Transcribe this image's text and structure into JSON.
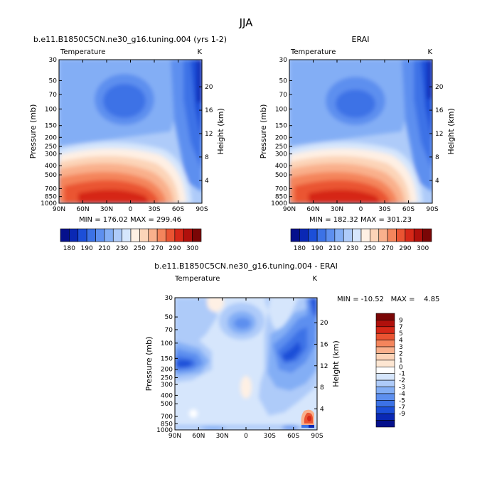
{
  "title": "JJA",
  "colors": {
    "temp_scale": [
      "#05108c",
      "#0a28b4",
      "#1c4fd8",
      "#3c72e6",
      "#5d8fef",
      "#83aef5",
      "#aecbf9",
      "#d6e6fc",
      "#fef0e4",
      "#fcd4b8",
      "#f9b08c",
      "#f4855c",
      "#ea5432",
      "#d62818",
      "#b0100c",
      "#7a0606"
    ],
    "diff_scale": [
      "#05108c",
      "#0a28b4",
      "#1c4fd8",
      "#3c72e6",
      "#5d8fef",
      "#83aef5",
      "#aecbf9",
      "#d6e6fc",
      "#ffffff",
      "#fde6d2",
      "#fcd4b8",
      "#f9b08c",
      "#f4855c",
      "#ea5432",
      "#d62818",
      "#b0100c",
      "#7a0606"
    ]
  },
  "chart_data": [
    {
      "type": "heatmap",
      "title": "b.e11.B1850C5CN.ne30_g16.tuning.004 (yrs 1-2)",
      "subtitle_left": "Temperature",
      "subtitle_right": "K",
      "ylabel": "Pressure (mb)",
      "ylabel_right": "Height (km)",
      "x_ticks": [
        "90N",
        "60N",
        "30N",
        "0",
        "30S",
        "60S",
        "90S"
      ],
      "y_ticks": [
        "30",
        "50",
        "70",
        "100",
        "150",
        "200",
        "250",
        "300",
        "400",
        "500",
        "700",
        "850",
        "1000"
      ],
      "y_right_ticks": [
        "20",
        "16",
        "12",
        "8",
        "4"
      ],
      "stats": "MIN = 176.02   MAX = 299.46",
      "colorbar_labels": [
        "180",
        "190",
        "210",
        "230",
        "250",
        "270",
        "290",
        "300"
      ]
    },
    {
      "type": "heatmap",
      "title": "ERAI",
      "subtitle_left": "Temperature",
      "subtitle_right": "K",
      "ylabel": "Pressure (mb)",
      "ylabel_right": "Height (km)",
      "x_ticks": [
        "90N",
        "60N",
        "30N",
        "0",
        "30S",
        "60S",
        "90S"
      ],
      "y_ticks": [
        "30",
        "50",
        "70",
        "100",
        "150",
        "200",
        "250",
        "300",
        "400",
        "500",
        "700",
        "850",
        "1000"
      ],
      "y_right_ticks": [
        "20",
        "16",
        "12",
        "8",
        "4"
      ],
      "stats": "MIN = 182.32   MAX = 301.23",
      "colorbar_labels": [
        "180",
        "190",
        "210",
        "230",
        "250",
        "270",
        "290",
        "300"
      ]
    },
    {
      "type": "heatmap",
      "title": "b.e11.B1850C5CN.ne30_g16.tuning.004 - ERAI",
      "subtitle_left": "Temperature",
      "subtitle_right": "K",
      "ylabel": "Pressure (mb)",
      "ylabel_right": "Height (km)",
      "x_ticks": [
        "90N",
        "60N",
        "30N",
        "0",
        "30S",
        "60S",
        "90S"
      ],
      "y_ticks": [
        "30",
        "50",
        "70",
        "100",
        "150",
        "200",
        "250",
        "300",
        "400",
        "500",
        "700",
        "850",
        "1000"
      ],
      "y_right_ticks": [
        "20",
        "16",
        "12",
        "8",
        "4"
      ],
      "stats": "MIN = -10.52   MAX =    4.85",
      "colorbar_labels": [
        "9",
        "7",
        "5",
        "4",
        "3",
        "2",
        "1",
        "0",
        "-1",
        "-2",
        "-3",
        "-4",
        "-5",
        "-7",
        "-9"
      ]
    }
  ]
}
